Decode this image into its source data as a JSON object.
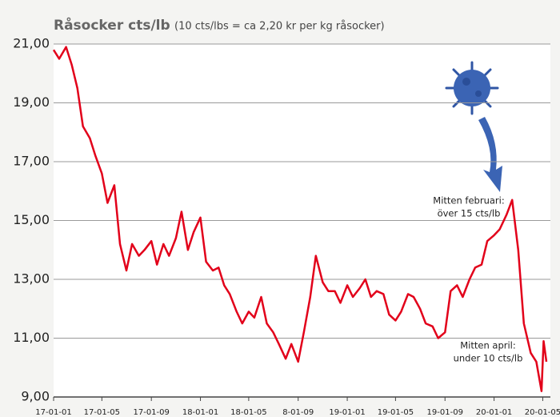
{
  "chart_data": {
    "type": "line",
    "title": "Råsocker cts/lb",
    "subtitle": "(10 cts/lbs = ca 2,20 kr per kg råsocker)",
    "color": "#e2001a",
    "grid": true,
    "x": [
      "2017-01-01",
      "2017-01-15",
      "2017-02-01",
      "2017-02-15",
      "2017-03-01",
      "2017-03-15",
      "2017-04-01",
      "2017-04-15",
      "2017-05-01",
      "2017-05-15",
      "2017-06-01",
      "2017-06-15",
      "2017-07-01",
      "2017-07-15",
      "2017-08-01",
      "2017-08-15",
      "2017-09-01",
      "2017-09-15",
      "2017-10-01",
      "2017-10-15",
      "2017-11-01",
      "2017-11-15",
      "2017-12-01",
      "2017-12-15",
      "2018-01-01",
      "2018-01-15",
      "2018-02-01",
      "2018-02-15",
      "2018-03-01",
      "2018-03-15",
      "2018-04-01",
      "2018-04-15",
      "2018-05-01",
      "2018-05-15",
      "2018-06-01",
      "2018-06-15",
      "2018-07-01",
      "2018-07-15",
      "2018-08-01",
      "2018-08-15",
      "2018-09-01",
      "2018-09-15",
      "2018-10-01",
      "2018-10-15",
      "2018-11-01",
      "2018-11-15",
      "2018-12-01",
      "2018-12-15",
      "2019-01-01",
      "2019-01-15",
      "2019-02-01",
      "2019-02-15",
      "2019-03-01",
      "2019-03-15",
      "2019-04-01",
      "2019-04-15",
      "2019-05-01",
      "2019-05-15",
      "2019-06-01",
      "2019-06-15",
      "2019-07-01",
      "2019-07-15",
      "2019-08-01",
      "2019-08-15",
      "2019-09-01",
      "2019-09-15",
      "2019-10-01",
      "2019-10-15",
      "2019-11-01",
      "2019-11-15",
      "2019-12-01",
      "2019-12-15",
      "2020-01-01",
      "2020-01-15",
      "2020-02-01",
      "2020-02-15",
      "2020-03-01",
      "2020-03-15",
      "2020-04-01",
      "2020-04-15",
      "2020-04-28",
      "2020-05-03",
      "2020-05-10"
    ],
    "values": [
      20.8,
      20.5,
      20.9,
      20.3,
      19.5,
      18.2,
      17.8,
      17.2,
      16.6,
      15.6,
      16.2,
      14.2,
      13.3,
      14.2,
      13.8,
      14.0,
      14.3,
      13.5,
      14.2,
      13.8,
      14.4,
      15.3,
      14.0,
      14.6,
      15.1,
      13.6,
      13.3,
      13.4,
      12.8,
      12.5,
      11.9,
      11.5,
      11.9,
      11.7,
      12.4,
      11.5,
      11.2,
      10.8,
      10.3,
      10.8,
      10.2,
      11.2,
      12.4,
      13.8,
      12.9,
      12.6,
      12.6,
      12.2,
      12.8,
      12.4,
      12.7,
      13.0,
      12.4,
      12.6,
      12.5,
      11.8,
      11.6,
      11.9,
      12.5,
      12.4,
      12.0,
      11.5,
      11.4,
      11.0,
      11.2,
      12.6,
      12.8,
      12.4,
      13.0,
      13.4,
      13.5,
      14.3,
      14.5,
      14.7,
      15.2,
      15.7,
      14.0,
      11.5,
      10.5,
      10.2,
      9.2,
      10.9,
      10.2
    ],
    "xlim": [
      "2017-01-01",
      "2020-05-20"
    ],
    "xticks": [
      {
        "value": "2017-01-01",
        "label": "17-01-01"
      },
      {
        "value": "2017-05-01",
        "label": "17-01-05"
      },
      {
        "value": "2017-09-01",
        "label": "17-01-09"
      },
      {
        "value": "2018-01-01",
        "label": "18-01-01"
      },
      {
        "value": "2018-05-01",
        "label": "18-01-05"
      },
      {
        "value": "2018-09-01",
        "label": "8-01-09"
      },
      {
        "value": "2019-01-01",
        "label": "19-01-01"
      },
      {
        "value": "2019-05-01",
        "label": "19-01-05"
      },
      {
        "value": "2019-09-01",
        "label": "19-01-09"
      },
      {
        "value": "2020-01-01",
        "label": "20-01-01"
      },
      {
        "value": "2020-05-01",
        "label": "20-01-05"
      }
    ],
    "ylim": [
      9,
      21
    ],
    "yticks": [
      {
        "value": 9,
        "label": "9,00"
      },
      {
        "value": 11,
        "label": "11,00"
      },
      {
        "value": 13,
        "label": "13,00"
      },
      {
        "value": 15,
        "label": "15,00"
      },
      {
        "value": 17,
        "label": "17,00"
      },
      {
        "value": 19,
        "label": "19,00"
      },
      {
        "value": 21,
        "label": "21,00"
      }
    ],
    "annotations": [
      {
        "lines": [
          "Mitten februari:",
          "över 15 cts/lb"
        ]
      },
      {
        "lines": [
          "Mitten april:",
          "under 10 cts/lb"
        ]
      }
    ]
  }
}
